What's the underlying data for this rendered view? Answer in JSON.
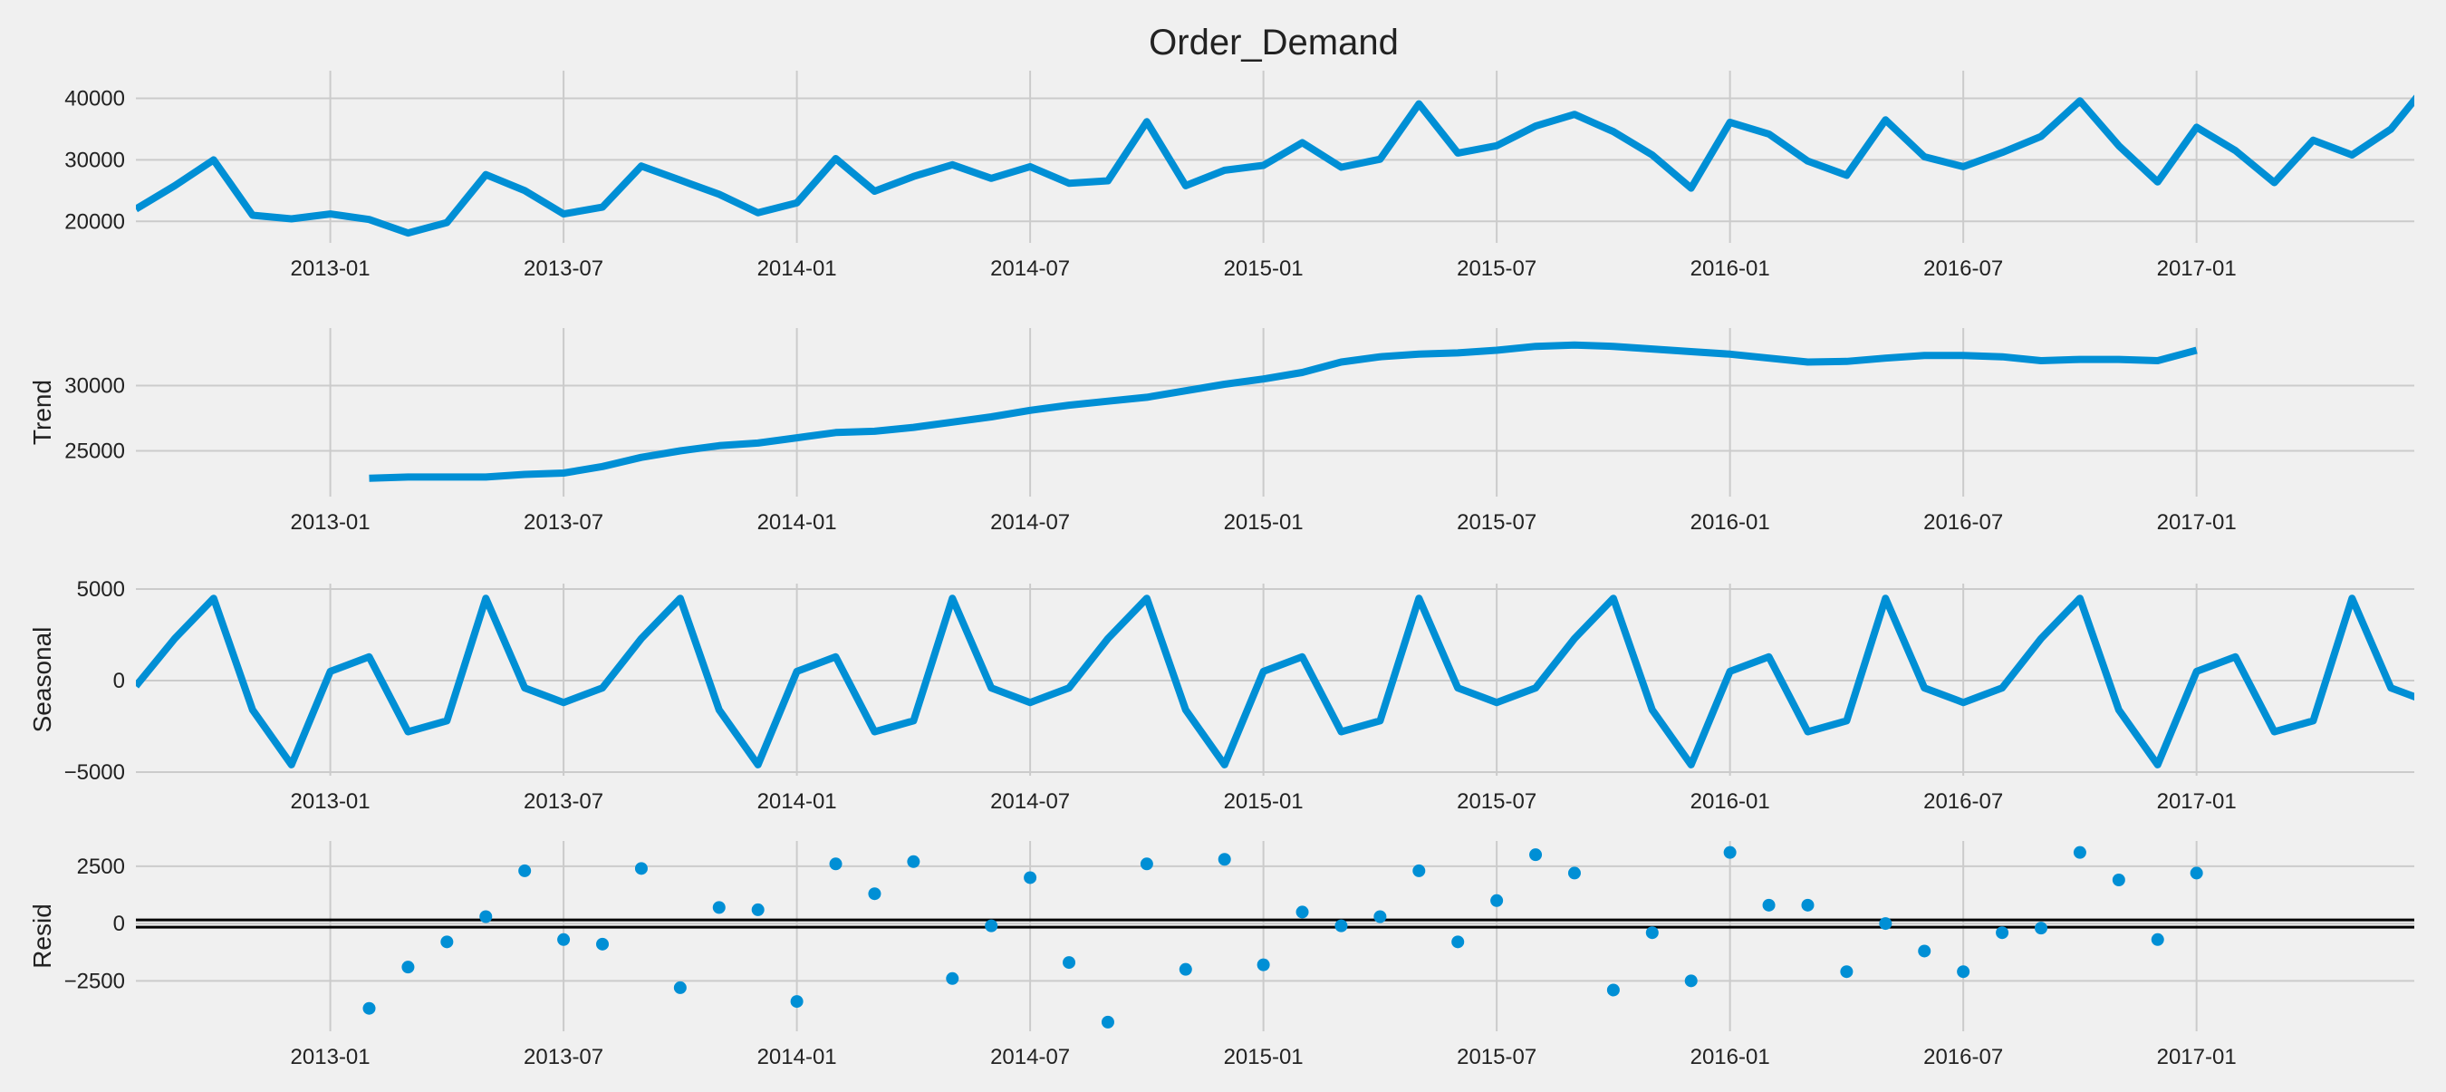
{
  "chart_data": {
    "type": "line",
    "title": "Order_Demand",
    "x_tick_labels": [
      "2013-01",
      "2013-07",
      "2014-01",
      "2014-07",
      "2015-01",
      "2015-07",
      "2016-01",
      "2016-07",
      "2017-01"
    ],
    "x_tick_index": [
      5,
      11,
      17,
      23,
      29,
      35,
      41,
      47,
      53
    ],
    "x_range_index": [
      0,
      58.6
    ],
    "grid": true,
    "colors": {
      "line": "#008fd5",
      "grid": "#cbcbcb",
      "background": "#f0f0f0",
      "zero_line": "#000000"
    },
    "months": [
      "2012-08",
      "2012-09",
      "2012-10",
      "2012-11",
      "2012-12",
      "2013-01",
      "2013-02",
      "2013-03",
      "2013-04",
      "2013-05",
      "2013-06",
      "2013-07",
      "2013-08",
      "2013-09",
      "2013-10",
      "2013-11",
      "2013-12",
      "2014-01",
      "2014-02",
      "2014-03",
      "2014-04",
      "2014-05",
      "2014-06",
      "2014-07",
      "2014-08",
      "2014-09",
      "2014-10",
      "2014-11",
      "2014-12",
      "2015-01",
      "2015-02",
      "2015-03",
      "2015-04",
      "2015-05",
      "2015-06",
      "2015-07",
      "2015-08",
      "2015-09",
      "2015-10",
      "2015-11",
      "2015-12",
      "2016-01",
      "2016-02",
      "2016-03",
      "2016-04",
      "2016-05",
      "2016-06",
      "2016-07",
      "2016-08",
      "2016-09",
      "2016-10",
      "2016-11",
      "2016-12",
      "2017-01",
      "2017-02",
      "2017-03",
      "2017-04",
      "2017-05",
      "2017-06",
      "2017-07"
    ],
    "panels": [
      {
        "name": "observed",
        "ylabel": "",
        "kind": "line",
        "ylim": [
          16500,
          44500
        ],
        "yticks": [
          20000,
          30000,
          40000
        ],
        "ytick_labels": [
          "20000",
          "30000",
          "40000"
        ],
        "values": [
          22000,
          25800,
          30000,
          21000,
          20400,
          21200,
          20300,
          18100,
          19800,
          27600,
          25000,
          21200,
          22300,
          29000,
          26700,
          24400,
          21400,
          23000,
          30200,
          24900,
          27300,
          29200,
          27000,
          28900,
          26200,
          26600,
          36200,
          25800,
          28300,
          29100,
          32800,
          28800,
          30100,
          39100,
          31100,
          32300,
          35500,
          37400,
          34600,
          30800,
          25400,
          36100,
          34200,
          29800,
          27500,
          36500,
          30500,
          28900,
          31200,
          33800,
          39600,
          32300,
          26400,
          35300,
          31500,
          26300,
          33200,
          30800,
          35000,
          42800
        ]
      },
      {
        "name": "trend",
        "ylabel": "Trend",
        "kind": "line",
        "ylim": [
          21500,
          34400
        ],
        "yticks": [
          25000,
          30000
        ],
        "ytick_labels": [
          "25000",
          "30000"
        ],
        "values": [
          null,
          null,
          null,
          null,
          null,
          null,
          22900,
          23000,
          23000,
          23000,
          23200,
          23300,
          23800,
          24500,
          25000,
          25400,
          25600,
          26000,
          26400,
          26500,
          26800,
          27200,
          27600,
          28100,
          28500,
          28800,
          29100,
          29600,
          30100,
          30500,
          31000,
          31800,
          32200,
          32400,
          32500,
          32700,
          33000,
          33100,
          33000,
          32800,
          32600,
          32400,
          32100,
          31800,
          31850,
          32100,
          32300,
          32300,
          32200,
          31900,
          32000,
          32000,
          31900,
          32700,
          null,
          null,
          null,
          null,
          null,
          null
        ]
      },
      {
        "name": "seasonal",
        "ylabel": "Seasonal",
        "kind": "line",
        "ylim": [
          -5200,
          5300
        ],
        "yticks": [
          -5000,
          0,
          5000
        ],
        "ytick_labels": [
          "−5000",
          "0",
          "5000"
        ],
        "values": [
          -300,
          2300,
          4500,
          -1600,
          -4600,
          500,
          1300,
          -2800,
          -2200,
          4500,
          -400,
          -1200,
          -400,
          2300,
          4500,
          -1600,
          -4600,
          500,
          1300,
          -2800,
          -2200,
          4500,
          -400,
          -1200,
          -400,
          2300,
          4500,
          -1600,
          -4600,
          500,
          1300,
          -2800,
          -2200,
          4500,
          -400,
          -1200,
          -400,
          2300,
          4500,
          -1600,
          -4600,
          500,
          1300,
          -2800,
          -2200,
          4500,
          -400,
          -1200,
          -400,
          2300,
          4500,
          -1600,
          -4600,
          500,
          1300,
          -2800,
          -2200,
          4500,
          -400,
          -1200
        ]
      },
      {
        "name": "resid",
        "ylabel": "Resid",
        "kind": "scatter",
        "ylim": [
          -4700,
          3600
        ],
        "yticks": [
          -2500,
          0,
          2500
        ],
        "ytick_labels": [
          "−2500",
          "0",
          "2500"
        ],
        "zero_line": true,
        "values": [
          null,
          null,
          null,
          null,
          null,
          null,
          -3700,
          -1900,
          -800,
          300,
          2300,
          -700,
          -900,
          2400,
          -2800,
          700,
          600,
          -3400,
          2600,
          1300,
          2700,
          -2400,
          -100,
          2000,
          -1700,
          -4300,
          2600,
          -2000,
          2800,
          -1800,
          500,
          -100,
          300,
          2300,
          -800,
          1000,
          3000,
          2200,
          -2900,
          -400,
          -2500,
          3100,
          800,
          800,
          -2100,
          0,
          -1200,
          -2100,
          -400,
          -200,
          3100,
          1900,
          -700,
          2200,
          null,
          null,
          null,
          null,
          null,
          null
        ]
      }
    ]
  }
}
